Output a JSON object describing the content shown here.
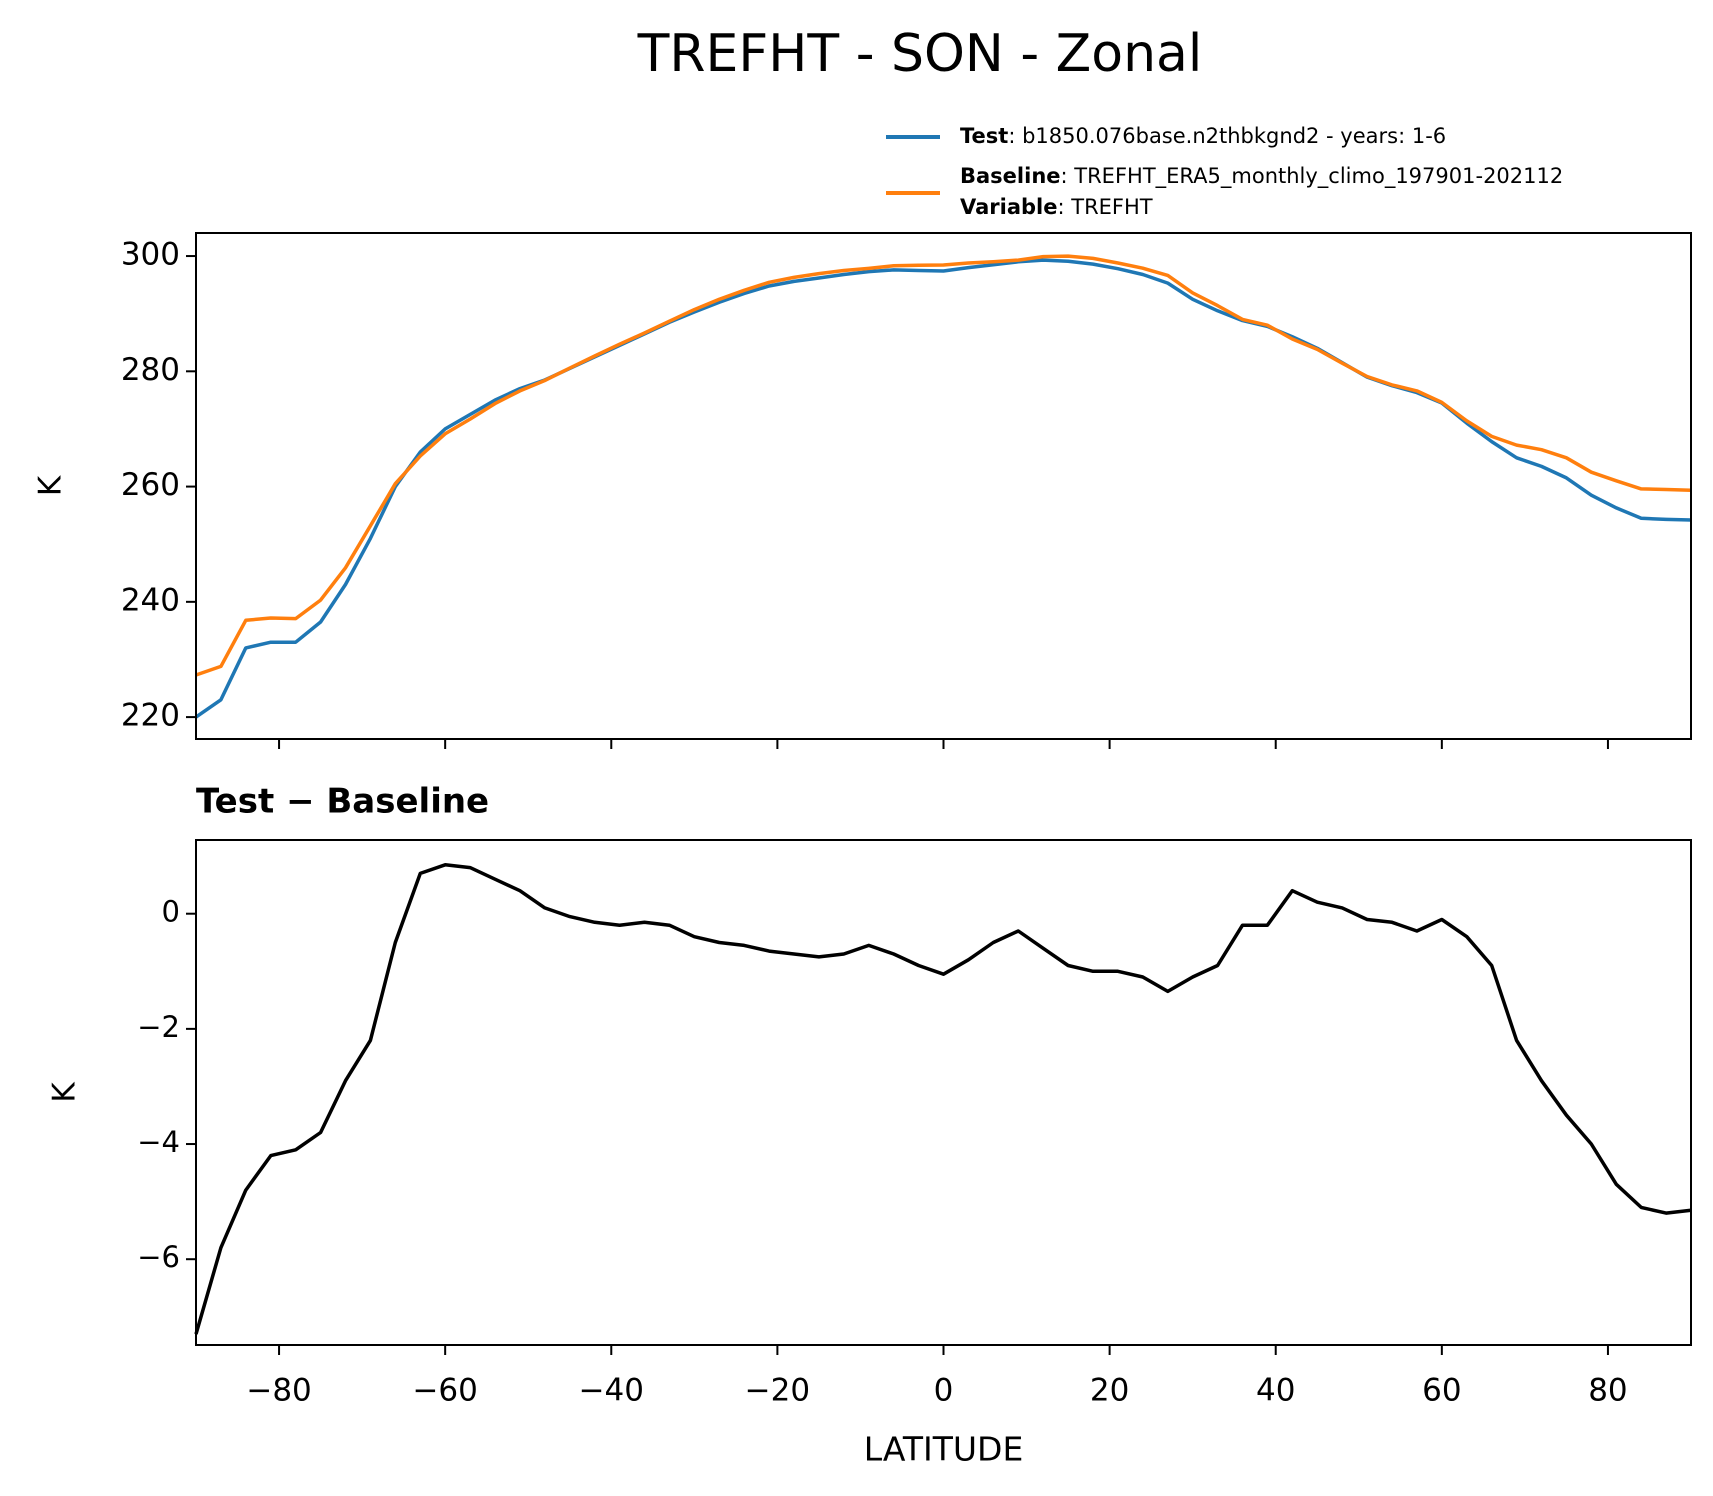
{
  "chart_data": [
    {
      "type": "line",
      "suptitle": "TREFHT - SON - Zonal",
      "ylabel": "K",
      "xlim": [
        -90,
        90
      ],
      "xticks": [
        -80,
        -60,
        -40,
        -20,
        0,
        20,
        40,
        60,
        80
      ],
      "ylim": [
        216.2,
        304
      ],
      "yticks": [
        220,
        240,
        260,
        280,
        300
      ],
      "x": [
        -90,
        -87,
        -84,
        -81,
        -78,
        -75,
        -72,
        -69,
        -66,
        -63,
        -60,
        -57,
        -54,
        -51,
        -48,
        -45,
        -42,
        -39,
        -36,
        -33,
        -30,
        -27,
        -24,
        -21,
        -18,
        -15,
        -12,
        -9,
        -6,
        -3,
        0,
        3,
        6,
        9,
        12,
        15,
        18,
        21,
        24,
        27,
        30,
        33,
        36,
        39,
        42,
        45,
        48,
        51,
        54,
        57,
        60,
        63,
        66,
        69,
        72,
        75,
        78,
        81,
        84,
        87,
        90
      ],
      "series": [
        {
          "name": "Test",
          "description": ": b1850.076base.n2thbkgnd2 - years: 1-6",
          "color": "#1f77b4",
          "values": [
            220,
            223,
            232,
            233,
            233,
            236.5,
            243,
            251,
            260,
            266,
            270,
            272.5,
            275,
            277,
            278.5,
            280.5,
            282.5,
            284.5,
            286.5,
            288.5,
            290.3,
            292,
            293.5,
            294.8,
            295.6,
            296.2,
            296.8,
            297.3,
            297.6,
            297.5,
            297.4,
            298,
            298.5,
            299,
            299.3,
            299.1,
            298.6,
            297.8,
            296.8,
            295.3,
            292.5,
            290.5,
            288.8,
            287.8,
            286,
            284,
            281.5,
            279,
            277.5,
            276.3,
            274.5,
            271,
            267.8,
            265,
            263.5,
            261.5,
            258.5,
            256.3,
            254.5,
            254.3,
            254.2
          ]
        },
        {
          "name": "Baseline",
          "description": ": TREFHT_ERA5_monthly_climo_197901-202112",
          "color": "#ff7f0e",
          "values": [
            227.3,
            228.8,
            236.8,
            237.2,
            237.1,
            240.3,
            245.9,
            253.2,
            260.5,
            265.3,
            269.15,
            271.7,
            274.4,
            276.6,
            278.4,
            280.55,
            282.65,
            284.7,
            286.65,
            288.7,
            290.7,
            292.5,
            294.05,
            295.45,
            296.3,
            296.95,
            297.5,
            297.85,
            298.3,
            298.4,
            298.45,
            298.8,
            299,
            299.3,
            299.9,
            300,
            299.6,
            298.8,
            297.9,
            296.65,
            293.6,
            291.4,
            289,
            288,
            285.6,
            283.8,
            281.4,
            279.1,
            277.65,
            276.6,
            274.6,
            271.4,
            268.7,
            267.2,
            266.4,
            265,
            262.5,
            261,
            259.6,
            259.5,
            259.35
          ]
        }
      ],
      "legend_extra": {
        "name": "Variable",
        "description": ": TREFHT"
      }
    },
    {
      "type": "line",
      "title": "Test − Baseline",
      "ylabel": "K",
      "xlabel": "LATITUDE",
      "xlim": [
        -90,
        90
      ],
      "xticks": [
        {
          "value": -80,
          "label": "−80"
        },
        {
          "value": -60,
          "label": "−60"
        },
        {
          "value": -40,
          "label": "−40"
        },
        {
          "value": -20,
          "label": "−20"
        },
        0,
        20,
        40,
        60,
        80
      ],
      "ylim": [
        -7.49,
        1.28
      ],
      "yticks": [
        {
          "value": -6,
          "label": "−6"
        },
        {
          "value": -4,
          "label": "−4"
        },
        {
          "value": -2,
          "label": "−2"
        },
        0
      ],
      "x": [
        -90,
        -87,
        -84,
        -81,
        -78,
        -75,
        -72,
        -69,
        -66,
        -63,
        -60,
        -57,
        -54,
        -51,
        -48,
        -45,
        -42,
        -39,
        -36,
        -33,
        -30,
        -27,
        -24,
        -21,
        -18,
        -15,
        -12,
        -9,
        -6,
        -3,
        0,
        3,
        6,
        9,
        12,
        15,
        18,
        21,
        24,
        27,
        30,
        33,
        36,
        39,
        42,
        45,
        48,
        51,
        54,
        57,
        60,
        63,
        66,
        69,
        72,
        75,
        78,
        81,
        84,
        87,
        90
      ],
      "series": [
        {
          "color": "#000000",
          "values": [
            -7.3,
            -5.8,
            -4.8,
            -4.2,
            -4.1,
            -3.8,
            -2.9,
            -2.2,
            -0.5,
            0.7,
            0.85,
            0.8,
            0.6,
            0.4,
            0.1,
            -0.05,
            -0.15,
            -0.2,
            -0.15,
            -0.2,
            -0.4,
            -0.5,
            -0.55,
            -0.65,
            -0.7,
            -0.75,
            -0.7,
            -0.55,
            -0.7,
            -0.9,
            -1.05,
            -0.8,
            -0.5,
            -0.3,
            -0.6,
            -0.9,
            -1.0,
            -1.0,
            -1.1,
            -1.35,
            -1.1,
            -0.9,
            -0.2,
            -0.2,
            0.4,
            0.2,
            0.1,
            -0.1,
            -0.15,
            -0.3,
            -0.1,
            -0.4,
            -0.9,
            -2.2,
            -2.9,
            -3.5,
            -4.0,
            -4.7,
            -5.1,
            -5.2,
            -5.15
          ]
        }
      ]
    }
  ]
}
